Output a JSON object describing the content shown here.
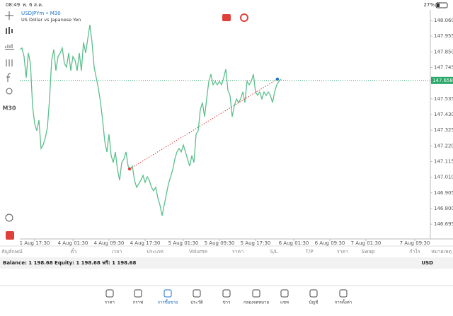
{
  "status_bar": {
    "time": "08:49",
    "date": "พ. 6 ส.ค.",
    "battery": "27%"
  },
  "toolbar": {
    "timeframe": "M30"
  },
  "chart_data": {
    "type": "line",
    "title": "USDJPYm • M30",
    "subtitle": "US Dollar vs Japanese Yen",
    "color": "#5cbf8c",
    "values": [
      147.865,
      147.875,
      147.818,
      147.676,
      147.842,
      147.771,
      147.487,
      147.368,
      147.321,
      147.392,
      147.202,
      147.226,
      147.273,
      147.344,
      147.534,
      147.794,
      147.865,
      147.723,
      147.818,
      147.842,
      147.875,
      147.771,
      147.747,
      147.842,
      147.723,
      147.818,
      147.794,
      147.723,
      147.842,
      147.723,
      147.913,
      147.842,
      147.937,
      148.031,
      147.913,
      147.747,
      147.676,
      147.605,
      147.51,
      147.392,
      147.25,
      147.179,
      147.297,
      147.155,
      147.108,
      147.179,
      147.06,
      146.989,
      147.108,
      147.131,
      147.179,
      147.084,
      147.06,
      147.084,
      146.989,
      146.942,
      146.965,
      146.989,
      147.022,
      146.975,
      147.013,
      146.989,
      146.942,
      146.918,
      146.942,
      146.871,
      146.823,
      146.752,
      146.823,
      146.894,
      146.965,
      147.013,
      147.06,
      147.131,
      147.179,
      147.202,
      147.179,
      147.226,
      147.179,
      147.131,
      147.084,
      147.155,
      147.108,
      147.297,
      147.321,
      147.463,
      147.51,
      147.415,
      147.534,
      147.652,
      147.7,
      147.629,
      147.652,
      147.629,
      147.652,
      147.629,
      147.676,
      147.733,
      147.591,
      147.558,
      147.415,
      147.487,
      147.534,
      147.51,
      147.534,
      147.581,
      147.51,
      147.652,
      147.629,
      147.652,
      147.7,
      147.581,
      147.558,
      147.581,
      147.534,
      147.581,
      147.558,
      147.581,
      147.558,
      147.51,
      147.581,
      147.629,
      147.652,
      147.667
    ],
    "xlim": [
      0,
      193
    ],
    "xticks": [
      {
        "value": 7,
        "label": "1 Aug 17:30"
      },
      {
        "value": 25,
        "label": "4 Aug 01:30"
      },
      {
        "value": 42,
        "label": "4 Aug 09:30"
      },
      {
        "value": 59,
        "label": "4 Aug 17:30"
      },
      {
        "value": 77,
        "label": "5 Aug 01:30"
      },
      {
        "value": 94,
        "label": "5 Aug 09:30"
      },
      {
        "value": 111,
        "label": "5 Aug 17:30"
      },
      {
        "value": 129,
        "label": "6 Aug 01:30"
      },
      {
        "value": 146,
        "label": "6 Aug 09:30"
      },
      {
        "value": 163,
        "label": "7 Aug 01:30"
      },
      {
        "value": 186,
        "label": "7 Aug 09:30"
      }
    ],
    "ylim": [
      146.596,
      148.126
    ],
    "yticks": [
      {
        "value": 148.06,
        "label": "148.060"
      },
      147.955,
      {
        "value": 147.85,
        "label": "147.850"
      },
      147.745,
      147.535,
      {
        "value": 147.43,
        "label": "147.430"
      },
      147.325,
      {
        "value": 147.22,
        "label": "147.220"
      },
      147.115,
      {
        "value": 147.01,
        "label": "147.010"
      },
      146.905,
      {
        "value": 146.8,
        "label": "146.800"
      },
      146.695
    ],
    "current_price": 147.658,
    "current_price_color": "#2aa86a",
    "trend_line": {
      "x": [
        51.7,
        121.3
      ],
      "values": [
        147.065,
        147.667
      ],
      "color": "#e03a3a"
    },
    "grid": false
  },
  "trade_table": {
    "columns": [
      "สัญลักษณ์",
      "ตั๋ว",
      "เวลา",
      "ประเภท",
      "Volume",
      "ราคา",
      "S/L",
      "T/P",
      "ราคา",
      "Swap",
      "กำไร",
      "หมายเหตุ"
    ]
  },
  "account": {
    "summary": "Balance: 1 198.68 Equity: 1 198.68 ฟรี: 1 198.68",
    "currency": "USD"
  },
  "tab_bar": {
    "tabs": [
      "ราคา",
      "กราฟ",
      "การซื้อขาย",
      "ประวัติ",
      "ข่าว",
      "กล่องจดหมาย",
      "แชท",
      "บัญชี",
      "การตั้งค่า"
    ],
    "active": 2
  }
}
